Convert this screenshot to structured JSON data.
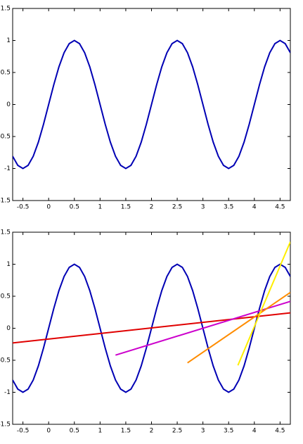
{
  "chart_data": [
    {
      "type": "line",
      "x": [
        -0.7,
        -0.6,
        -0.5,
        -0.4,
        -0.3,
        -0.2,
        -0.1,
        0,
        0.1,
        0.2,
        0.3,
        0.4,
        0.5,
        0.6,
        0.7,
        0.8,
        0.9,
        1,
        1.1,
        1.2,
        1.3,
        1.4,
        1.5,
        1.6,
        1.7,
        1.8,
        1.9,
        2,
        2.1,
        2.2,
        2.3,
        2.4,
        2.5,
        2.6,
        2.7,
        2.8,
        2.9,
        3,
        3.1,
        3.2,
        3.3,
        3.4,
        3.5,
        3.6,
        3.7,
        3.8,
        3.9,
        4,
        4.1,
        4.2,
        4.3,
        4.4,
        4.5,
        4.6,
        4.7
      ],
      "series": [
        {
          "color": "#0000b4",
          "values": [
            -0.809,
            -0.951,
            -1,
            -0.951,
            -0.809,
            -0.588,
            -0.309,
            0,
            0.309,
            0.588,
            0.809,
            0.951,
            1,
            0.951,
            0.809,
            0.588,
            0.309,
            0,
            -0.309,
            -0.588,
            -0.809,
            -0.951,
            -1,
            -0.951,
            -0.809,
            -0.588,
            -0.309,
            0,
            0.309,
            0.588,
            0.809,
            0.951,
            1,
            0.951,
            0.809,
            0.588,
            0.309,
            0,
            -0.309,
            -0.588,
            -0.809,
            -0.951,
            -1,
            -0.951,
            -0.809,
            -0.588,
            -0.309,
            0,
            0.309,
            0.588,
            0.809,
            0.951,
            1,
            0.951,
            0.809
          ]
        }
      ],
      "xlim": [
        -0.7,
        4.7
      ],
      "ylim": [
        -1.5,
        1.5
      ],
      "xticks": [
        -0.5,
        0,
        0.5,
        1,
        1.5,
        2,
        2.5,
        3,
        3.5,
        4,
        4.5
      ],
      "yticks": [
        -1.5,
        -1,
        -0.5,
        0,
        0.5,
        1,
        1.5
      ]
    },
    {
      "type": "line",
      "x": [
        -0.7,
        -0.6,
        -0.5,
        -0.4,
        -0.3,
        -0.2,
        -0.1,
        0,
        0.1,
        0.2,
        0.3,
        0.4,
        0.5,
        0.6,
        0.7,
        0.8,
        0.9,
        1,
        1.1,
        1.2,
        1.3,
        1.4,
        1.5,
        1.6,
        1.7,
        1.8,
        1.9,
        2,
        2.1,
        2.2,
        2.3,
        2.4,
        2.5,
        2.6,
        2.7,
        2.8,
        2.9,
        3,
        3.1,
        3.2,
        3.3,
        3.4,
        3.5,
        3.6,
        3.7,
        3.8,
        3.9,
        4,
        4.1,
        4.2,
        4.3,
        4.4,
        4.5,
        4.6,
        4.7
      ],
      "series": [
        {
          "color": "#0000b4",
          "values": [
            -0.809,
            -0.951,
            -1,
            -0.951,
            -0.809,
            -0.588,
            -0.309,
            0,
            0.309,
            0.588,
            0.809,
            0.951,
            1,
            0.951,
            0.809,
            0.588,
            0.309,
            0,
            -0.309,
            -0.588,
            -0.809,
            -0.951,
            -1,
            -0.951,
            -0.809,
            -0.588,
            -0.309,
            0,
            0.309,
            0.588,
            0.809,
            0.951,
            1,
            0.951,
            0.809,
            0.588,
            0.309,
            0,
            -0.309,
            -0.588,
            -0.809,
            -0.951,
            -1,
            -0.951,
            -0.809,
            -0.588,
            -0.309,
            0,
            0.309,
            0.588,
            0.809,
            0.951,
            1,
            0.951,
            0.809
          ]
        },
        {
          "color": "#e00000",
          "x": [
            -0.7,
            4.7
          ],
          "values": [
            -0.23,
            0.24
          ]
        },
        {
          "color": "#cc00cc",
          "x": [
            1.3,
            4.7
          ],
          "values": [
            -0.42,
            0.42
          ]
        },
        {
          "color": "#ff8c00",
          "x": [
            2.7,
            4.7
          ],
          "values": [
            -0.54,
            0.56
          ]
        },
        {
          "color": "#ffee00",
          "x": [
            3.68,
            4.7
          ],
          "values": [
            -0.58,
            1.35
          ]
        }
      ],
      "xlim": [
        -0.7,
        4.7
      ],
      "ylim": [
        -1.5,
        1.5
      ],
      "xticks": [
        -0.5,
        0,
        0.5,
        1,
        1.5,
        2,
        2.5,
        3,
        3.5,
        4,
        4.5
      ],
      "yticks": [
        -1.5,
        -1,
        -0.5,
        0,
        0.5,
        1,
        1.5
      ]
    }
  ]
}
